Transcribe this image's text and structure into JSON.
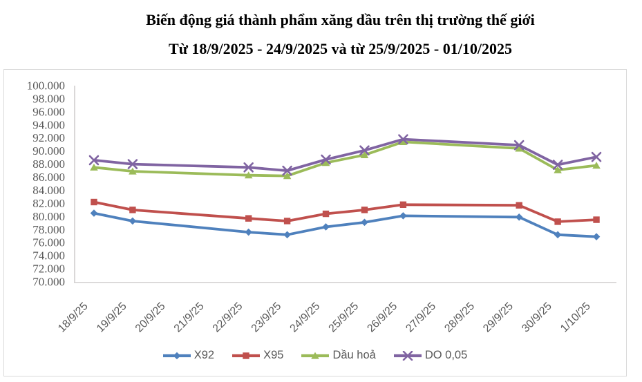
{
  "title": {
    "line1": "Biến động giá thành phẩm xăng dầu trên thị trường thế giới",
    "line2": "Từ 18/9/2025 - 24/9/2025 và từ 25/9/2025 - 01/10/2025"
  },
  "chart_data": {
    "type": "line",
    "title": "Biến động giá thành phẩm xăng dầu trên thị trường thế giới",
    "subtitle": "Từ 18/9/2025 - 24/9/2025 và từ 25/9/2025 - 01/10/2025",
    "categories": [
      "18/9/25",
      "19/9/25",
      "20/9/25",
      "21/9/25",
      "22/9/25",
      "23/9/25",
      "24/9/25",
      "25/9/25",
      "26/9/25",
      "27/9/25",
      "28/9/25",
      "29/9/25",
      "30/9/25",
      "1/10/25"
    ],
    "data_point_category_indices": [
      0,
      1,
      4,
      5,
      6,
      7,
      8,
      11,
      12,
      13
    ],
    "gap_categories_without_markers": [
      "20/9/25",
      "21/9/25",
      "27/9/25",
      "28/9/25"
    ],
    "ylim": [
      70000,
      100000
    ],
    "y_tick_step": 2000,
    "y_tick_labels": [
      "100.000",
      "98.000",
      "96.000",
      "94.000",
      "92.000",
      "90.000",
      "88.000",
      "86.000",
      "84.000",
      "82.000",
      "80.000",
      "78.000",
      "76.000",
      "74.000",
      "72.000",
      "70.000"
    ],
    "grid": false,
    "legend_position": "bottom",
    "axis_color": "#d0cece",
    "label_color": "#595959",
    "series": [
      {
        "name": "X92",
        "color": "#4F81BD",
        "marker": "diamond",
        "values": [
          80500,
          79300,
          77600,
          77200,
          78400,
          79100,
          80100,
          79900,
          77200,
          76900
        ]
      },
      {
        "name": "X95",
        "color": "#C0504D",
        "marker": "square",
        "values": [
          82200,
          81000,
          79700,
          79300,
          80400,
          81000,
          81800,
          81700,
          79200,
          79500
        ]
      },
      {
        "name": "Dầu hoả",
        "color": "#9BBB59",
        "marker": "triangle",
        "values": [
          87500,
          86900,
          86300,
          86200,
          88200,
          89400,
          91400,
          90400,
          87100,
          87800
        ]
      },
      {
        "name": "DO 0,05",
        "color": "#8064A2",
        "marker": "x-cross",
        "values": [
          88600,
          88000,
          87500,
          87000,
          88700,
          90100,
          91800,
          90900,
          87900,
          89100
        ]
      }
    ]
  }
}
